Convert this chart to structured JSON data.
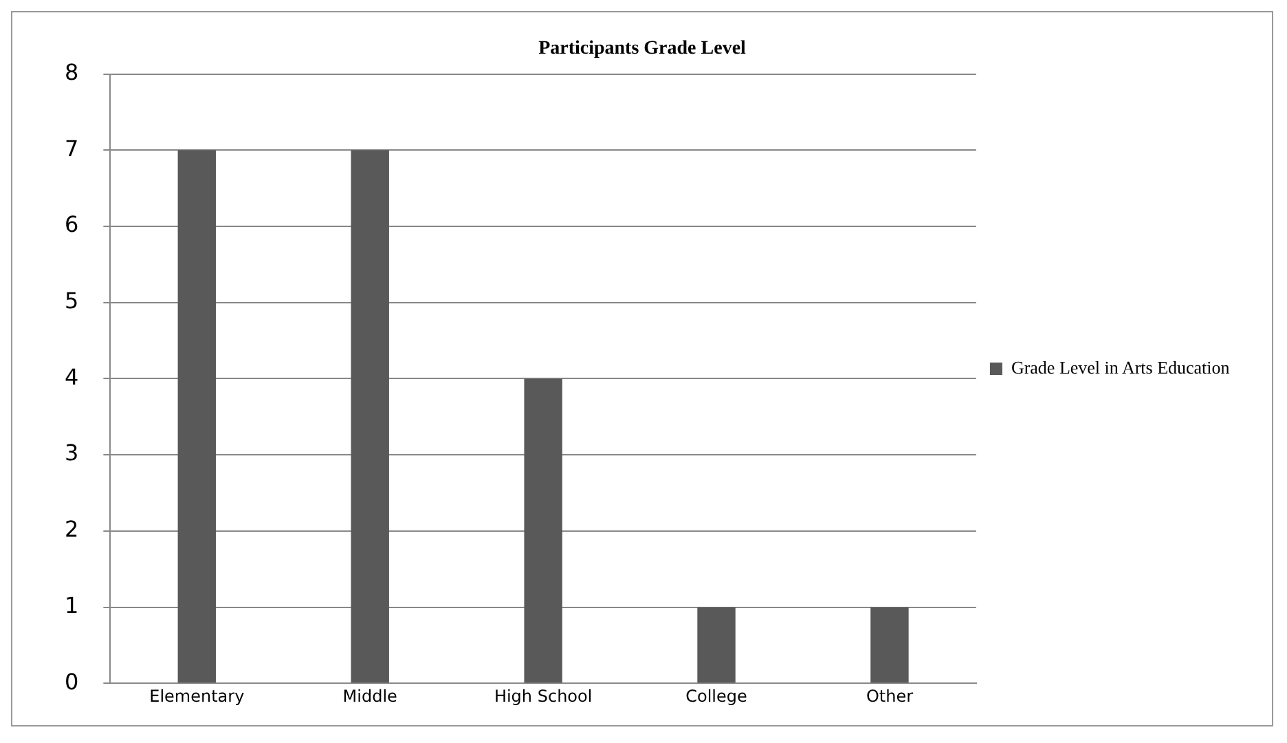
{
  "chart_data": {
    "type": "bar",
    "title": "Participants Grade Level",
    "categories": [
      "Elementary",
      "Middle",
      "High School",
      "College",
      "Other"
    ],
    "series": [
      {
        "name": "Grade Level in Arts Education",
        "color": "#595959",
        "values": [
          7,
          7,
          4,
          1,
          1
        ]
      }
    ],
    "ylim": [
      0,
      8
    ],
    "yticks": [
      0,
      1,
      2,
      3,
      4,
      5,
      6,
      7,
      8
    ],
    "grid": "y",
    "legend": "right"
  }
}
